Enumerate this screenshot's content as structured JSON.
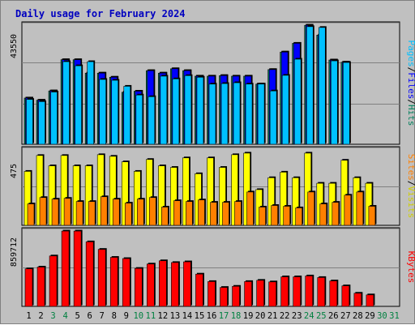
{
  "chart_data": [
    {
      "type": "bar",
      "title": "Daily usage for February 2024",
      "x": [
        1,
        2,
        3,
        4,
        5,
        6,
        7,
        8,
        9,
        10,
        11,
        12,
        13,
        14,
        15,
        16,
        17,
        18,
        19,
        20,
        21,
        22,
        23,
        24,
        25,
        26,
        27,
        28,
        29,
        30,
        31
      ],
      "weekend_days": [
        3,
        4,
        10,
        11,
        17,
        18,
        24,
        25,
        30,
        31
      ],
      "ymax_label": "43550",
      "right_label": [
        "Hits",
        "Files",
        "Pages"
      ],
      "series": [
        {
          "name": "Hits",
          "color": "#00805c",
          "values": [
            16900,
            16100,
            19500,
            30900,
            30900,
            26000,
            26000,
            24500,
            19000,
            19400,
            26900,
            26000,
            27600,
            26900,
            24900,
            24900,
            25100,
            24900,
            24900,
            22000,
            27300,
            33700,
            36900,
            43500,
            39900,
            30800,
            30000,
            null,
            null,
            null,
            null
          ]
        },
        {
          "name": "Files",
          "color": "#0000ff",
          "values": [
            16900,
            16100,
            19500,
            30900,
            30900,
            26000,
            26000,
            24500,
            19000,
            19400,
            26900,
            26000,
            27600,
            26900,
            24900,
            24900,
            25100,
            24900,
            24900,
            22000,
            27300,
            33700,
            36900,
            43500,
            39900,
            30800,
            30000,
            null,
            null,
            null,
            null
          ]
        },
        {
          "name": "Pages",
          "color": "#00c0ff",
          "values": [
            16400,
            15600,
            19100,
            30200,
            28700,
            30200,
            23700,
            23400,
            21200,
            18000,
            17400,
            24900,
            23900,
            25100,
            24500,
            22000,
            22200,
            22500,
            22000,
            22000,
            19500,
            25200,
            31100,
            43000,
            42700,
            30500,
            29900,
            null,
            null,
            null,
            null
          ]
        }
      ]
    },
    {
      "type": "bar",
      "ymax_label": "475",
      "right_label": [
        "Visits",
        "Sites"
      ],
      "series": [
        {
          "name": "Visits",
          "color": "#ffff00",
          "values": [
            340,
            440,
            375,
            440,
            375,
            375,
            445,
            435,
            400,
            340,
            415,
            375,
            365,
            425,
            325,
            425,
            365,
            445,
            455,
            225,
            300,
            335,
            300,
            455,
            265,
            265,
            410,
            300,
            265,
            null,
            null
          ]
        },
        {
          "name": "Sites",
          "color": "#ff8000",
          "values": [
            135,
            175,
            165,
            170,
            150,
            150,
            180,
            165,
            140,
            165,
            175,
            115,
            155,
            150,
            160,
            145,
            145,
            150,
            210,
            115,
            125,
            120,
            110,
            210,
            135,
            145,
            190,
            210,
            120,
            null,
            null
          ]
        }
      ]
    },
    {
      "type": "bar",
      "ymax_label": "859712",
      "right_label": [
        "KBytes"
      ],
      "series": [
        {
          "name": "KBytes",
          "color": "#ff0000",
          "values": [
            428000,
            448000,
            575000,
            859000,
            859000,
            736000,
            650000,
            559000,
            545000,
            433000,
            483000,
            520000,
            500000,
            508000,
            368000,
            283000,
            216000,
            229000,
            283000,
            297000,
            279000,
            337000,
            337000,
            347000,
            329000,
            290000,
            234000,
            150000,
            131000,
            null,
            null
          ]
        }
      ]
    }
  ]
}
